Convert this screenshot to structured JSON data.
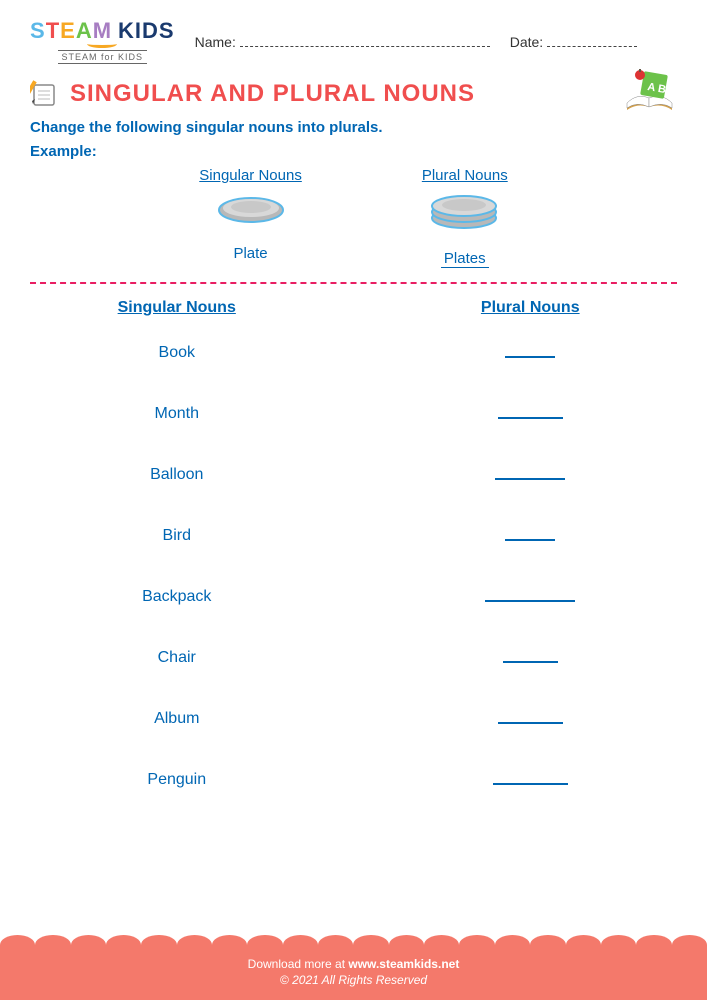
{
  "colors": {
    "title": "#f04e4e",
    "instruction": "#0066b3",
    "text_blue": "#0066b3",
    "divider": "#e91e63",
    "footer_bg": "#f4796b",
    "footer_text": "#ffffff"
  },
  "header": {
    "logo_main": "STEAM",
    "logo_kids": "KIDS",
    "logo_sub": "STEAM for KIDS",
    "name_label": "Name:",
    "date_label": "Date:",
    "name_line_width": 250,
    "date_line_width": 90
  },
  "title": "SINGULAR AND PLURAL NOUNS",
  "instruction": "Change the following singular nouns into plurals.",
  "example": {
    "label": "Example:",
    "singular_header": "Singular Nouns",
    "plural_header": "Plural Nouns",
    "singular_word": "Plate",
    "plural_word": "Plates"
  },
  "main": {
    "singular_header": "Singular Nouns",
    "plural_header": "Plural Nouns",
    "rows": [
      {
        "word": "Book",
        "blank_width": 50
      },
      {
        "word": "Month",
        "blank_width": 65
      },
      {
        "word": "Balloon",
        "blank_width": 70
      },
      {
        "word": "Bird",
        "blank_width": 50
      },
      {
        "word": "Backpack",
        "blank_width": 90
      },
      {
        "word": "Chair",
        "blank_width": 55
      },
      {
        "word": "Album",
        "blank_width": 65
      },
      {
        "word": "Penguin",
        "blank_width": 75
      }
    ]
  },
  "footer": {
    "line1_pre": "Download more at ",
    "line1_link": "www.steamkids.net",
    "line2": "© 2021 All Rights Reserved"
  }
}
